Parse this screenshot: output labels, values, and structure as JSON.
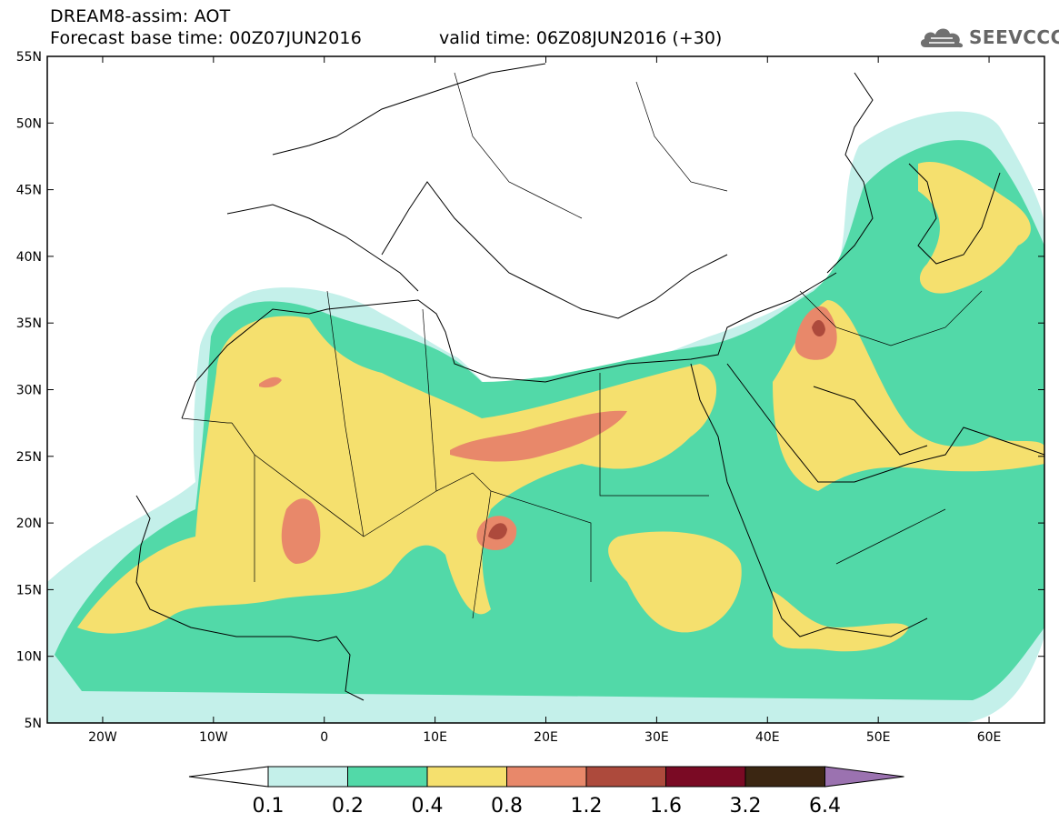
{
  "header": {
    "title": "DREAM8-assim: AOT",
    "base_time": "Forecast base time: 00Z07JUN2016",
    "valid_time": "valid time: 06Z08JUN2016 (+30)",
    "logo_text": "SEEVCCC"
  },
  "map": {
    "lat_ticks": [
      "55N",
      "50N",
      "45N",
      "40N",
      "35N",
      "30N",
      "25N",
      "20N",
      "15N",
      "10N",
      "5N"
    ],
    "lon_ticks": [
      "20W",
      "10W",
      "0",
      "10E",
      "20E",
      "30E",
      "40E",
      "50E",
      "60E"
    ],
    "lon_range": [
      -25,
      65
    ],
    "lat_range": [
      5,
      55
    ]
  },
  "colorbar": {
    "labels": [
      "0.1",
      "0.2",
      "0.4",
      "0.8",
      "1.2",
      "1.6",
      "3.2",
      "6.4"
    ],
    "colors": [
      "#ffffff",
      "#c4f0ea",
      "#52d9a8",
      "#f5e06e",
      "#e8886a",
      "#ad4a3c",
      "#7a0a24",
      "#3b2612",
      "#9b72b0"
    ]
  }
}
